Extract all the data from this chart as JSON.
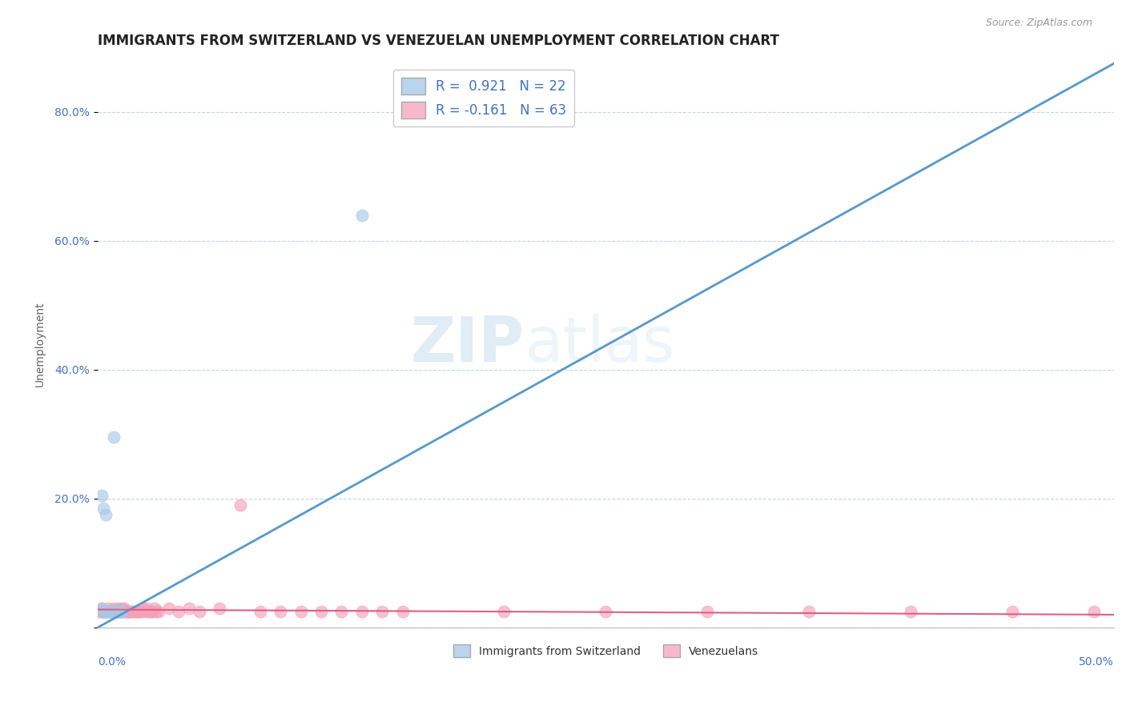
{
  "title": "IMMIGRANTS FROM SWITZERLAND VS VENEZUELAN UNEMPLOYMENT CORRELATION CHART",
  "source": "Source: ZipAtlas.com",
  "ylabel": "Unemployment",
  "watermark_zip": "ZIP",
  "watermark_atlas": "atlas",
  "blue_color": "#a8c8e8",
  "pink_color": "#f4a0b8",
  "blue_line_color": "#5599cc",
  "pink_line_color": "#e06080",
  "blue_scatter": [
    [
      0.002,
      0.205
    ],
    [
      0.003,
      0.185
    ],
    [
      0.004,
      0.175
    ],
    [
      0.003,
      0.025
    ],
    [
      0.004,
      0.025
    ],
    [
      0.005,
      0.025
    ],
    [
      0.005,
      0.025
    ],
    [
      0.006,
      0.025
    ],
    [
      0.006,
      0.025
    ],
    [
      0.007,
      0.025
    ],
    [
      0.007,
      0.025
    ],
    [
      0.008,
      0.025
    ],
    [
      0.008,
      0.295
    ],
    [
      0.009,
      0.025
    ],
    [
      0.009,
      0.025
    ],
    [
      0.01,
      0.025
    ],
    [
      0.01,
      0.025
    ],
    [
      0.011,
      0.025
    ],
    [
      0.011,
      0.025
    ],
    [
      0.012,
      0.025
    ],
    [
      0.13,
      0.64
    ],
    [
      0.002,
      0.03
    ]
  ],
  "pink_scatter": [
    [
      0.001,
      0.025
    ],
    [
      0.002,
      0.025
    ],
    [
      0.002,
      0.03
    ],
    [
      0.003,
      0.025
    ],
    [
      0.003,
      0.025
    ],
    [
      0.004,
      0.025
    ],
    [
      0.004,
      0.025
    ],
    [
      0.005,
      0.025
    ],
    [
      0.005,
      0.03
    ],
    [
      0.006,
      0.025
    ],
    [
      0.006,
      0.025
    ],
    [
      0.007,
      0.025
    ],
    [
      0.007,
      0.025
    ],
    [
      0.008,
      0.03
    ],
    [
      0.008,
      0.025
    ],
    [
      0.009,
      0.025
    ],
    [
      0.009,
      0.025
    ],
    [
      0.01,
      0.025
    ],
    [
      0.01,
      0.03
    ],
    [
      0.011,
      0.025
    ],
    [
      0.011,
      0.025
    ],
    [
      0.012,
      0.03
    ],
    [
      0.012,
      0.025
    ],
    [
      0.013,
      0.025
    ],
    [
      0.013,
      0.03
    ],
    [
      0.014,
      0.025
    ],
    [
      0.015,
      0.025
    ],
    [
      0.015,
      0.025
    ],
    [
      0.016,
      0.025
    ],
    [
      0.017,
      0.025
    ],
    [
      0.018,
      0.025
    ],
    [
      0.019,
      0.025
    ],
    [
      0.02,
      0.025
    ],
    [
      0.021,
      0.025
    ],
    [
      0.022,
      0.03
    ],
    [
      0.023,
      0.025
    ],
    [
      0.024,
      0.03
    ],
    [
      0.025,
      0.025
    ],
    [
      0.026,
      0.025
    ],
    [
      0.027,
      0.025
    ],
    [
      0.028,
      0.03
    ],
    [
      0.029,
      0.025
    ],
    [
      0.03,
      0.025
    ],
    [
      0.035,
      0.03
    ],
    [
      0.04,
      0.025
    ],
    [
      0.045,
      0.03
    ],
    [
      0.05,
      0.025
    ],
    [
      0.06,
      0.03
    ],
    [
      0.07,
      0.19
    ],
    [
      0.08,
      0.025
    ],
    [
      0.09,
      0.025
    ],
    [
      0.1,
      0.025
    ],
    [
      0.11,
      0.025
    ],
    [
      0.12,
      0.025
    ],
    [
      0.13,
      0.025
    ],
    [
      0.14,
      0.025
    ],
    [
      0.15,
      0.025
    ],
    [
      0.2,
      0.025
    ],
    [
      0.25,
      0.025
    ],
    [
      0.3,
      0.025
    ],
    [
      0.35,
      0.025
    ],
    [
      0.4,
      0.025
    ],
    [
      0.45,
      0.025
    ],
    [
      0.49,
      0.025
    ]
  ],
  "blue_line": [
    [
      0.0,
      0.0
    ],
    [
      0.5,
      0.875
    ]
  ],
  "pink_line": [
    [
      0.0,
      0.028
    ],
    [
      0.5,
      0.02
    ]
  ],
  "xlim": [
    0.0,
    0.5
  ],
  "ylim": [
    0.0,
    0.88
  ],
  "yticks": [
    0.0,
    0.2,
    0.4,
    0.6,
    0.8
  ],
  "ytick_labels": [
    "",
    "20.0%",
    "40.0%",
    "60.0%",
    "80.0%"
  ],
  "background_color": "#ffffff",
  "grid_color": "#c8d4e8",
  "title_fontsize": 12,
  "axis_label_fontsize": 10
}
